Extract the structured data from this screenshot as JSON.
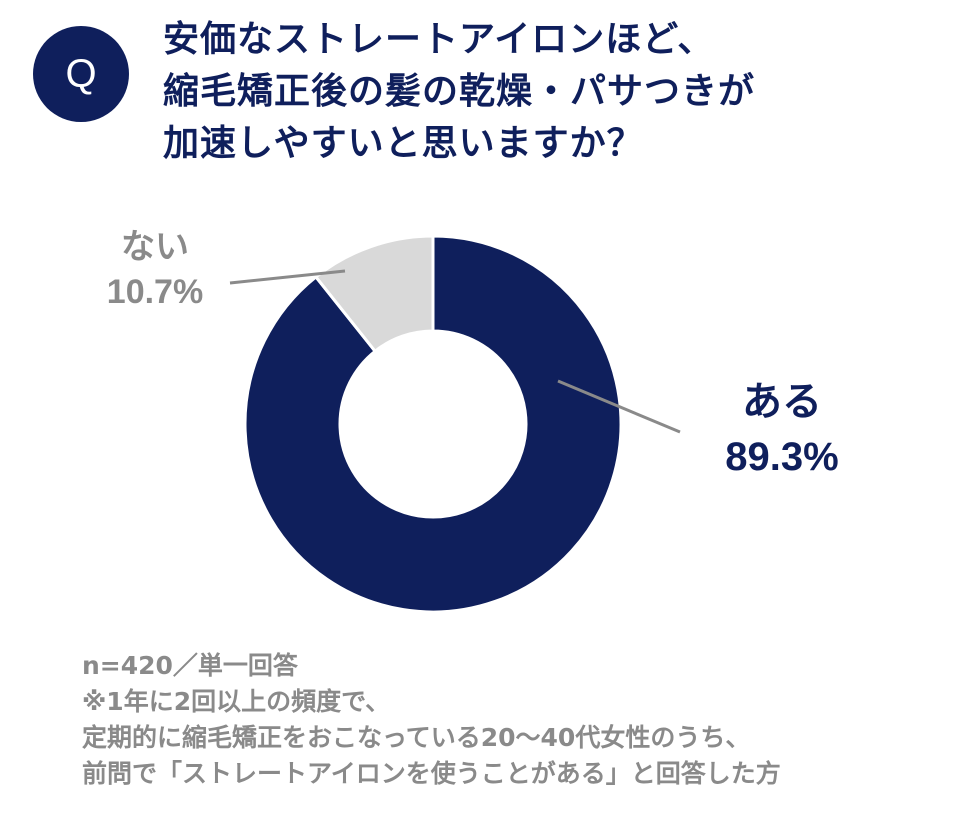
{
  "badge": {
    "label": "Q"
  },
  "question": {
    "lines": [
      "安価なストレートアイロンほど、",
      "縮毛矯正後の髪の乾燥・パサつきが",
      "加速しやすいと思いますか？"
    ]
  },
  "chart_data": {
    "type": "pie",
    "title": "安価なストレートアイロンほど、縮毛矯正後の髪の乾燥・パサつきが加速しやすいと思いますか？",
    "categories": [
      "ある",
      "ない"
    ],
    "values": [
      89.3,
      10.7
    ],
    "value_labels": [
      "89.3%",
      "10.7%"
    ],
    "colors": [
      "#0f1f5c",
      "#d9d9d9"
    ],
    "label_colors": [
      "#0f1f5c",
      "#8a8a8a"
    ],
    "donut": true
  },
  "footnote": {
    "lines": [
      "n=420／単一回答",
      "※1年に2回以上の頻度で、",
      "定期的に縮毛矯正をおこなっている20～40代女性のうち、",
      "前問で「ストレートアイロンを使うことがある」と回答した方"
    ]
  }
}
